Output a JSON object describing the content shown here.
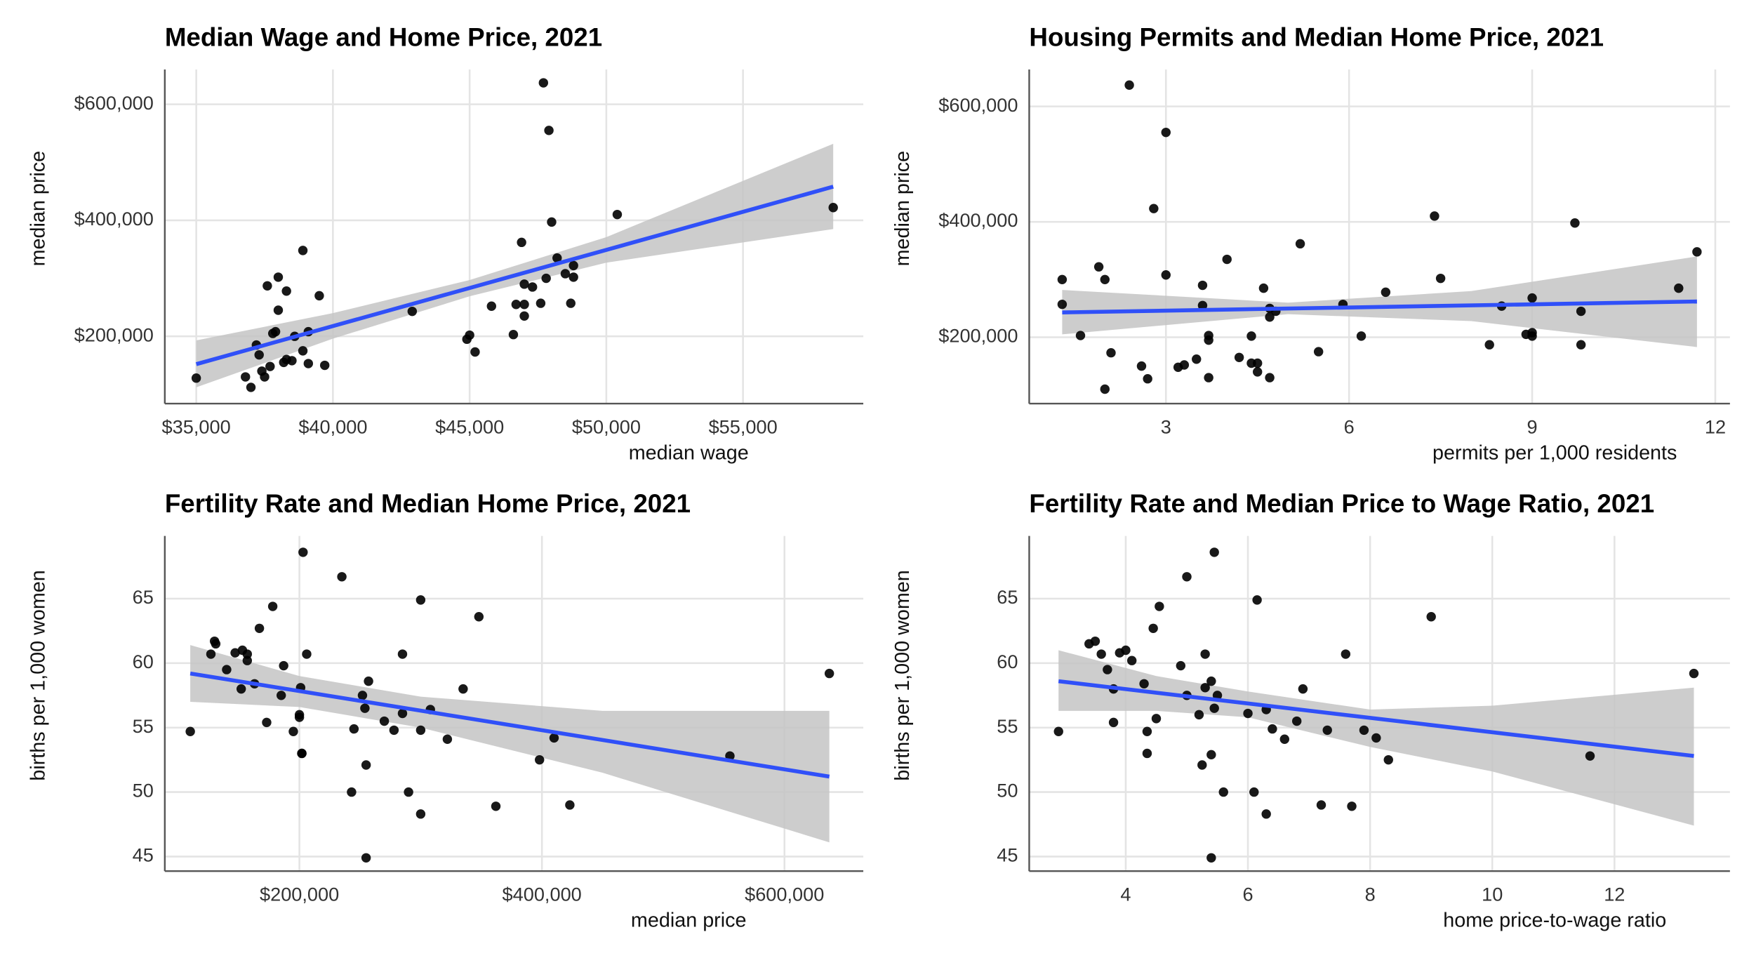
{
  "chart_data": [
    {
      "type": "scatter",
      "title": "Median Wage and Home Price, 2021",
      "x_label": "median wage",
      "y_label": "median price",
      "color": "#000000",
      "x": [
        35000,
        36800,
        37000,
        37200,
        37300,
        37400,
        37500,
        37600,
        37700,
        37800,
        37900,
        38000,
        38000,
        38200,
        38300,
        38300,
        38500,
        38600,
        38900,
        38900,
        39100,
        39100,
        39500,
        39700,
        42900,
        44900,
        45000,
        45200,
        45800,
        46600,
        46700,
        46900,
        47000,
        47000,
        47000,
        47300,
        47600,
        47700,
        47800,
        47900,
        48000,
        48200,
        48500,
        48700,
        48800,
        48800,
        50400,
        58300
      ],
      "values": [
        128000,
        130000,
        112000,
        185000,
        168000,
        140000,
        130000,
        287000,
        148000,
        205000,
        208000,
        302000,
        245000,
        155000,
        278000,
        160000,
        158000,
        200000,
        175000,
        348000,
        208000,
        153000,
        270000,
        150000,
        243000,
        195000,
        202000,
        173000,
        252000,
        203000,
        255000,
        362000,
        255000,
        235000,
        290000,
        285000,
        257000,
        637000,
        300000,
        555000,
        397000,
        335000,
        308000,
        257000,
        322000,
        302000,
        410000,
        422000
      ],
      "trend": {
        "color": "#3050f8",
        "x": [
          35000,
          58300
        ],
        "y": [
          152000,
          458000
        ]
      },
      "band": {
        "color": "#c4c4c4",
        "x": [
          35000,
          40000,
          45000,
          50000,
          58300
        ],
        "lower": [
          112000,
          196000,
          269000,
          327000,
          385000
        ],
        "upper": [
          193000,
          240000,
          297000,
          371000,
          532000
        ]
      },
      "xlim": [
        33850,
        59400
      ],
      "ylim": [
        84000,
        660000
      ],
      "xticks": [
        {
          "value": 35000,
          "label": "$35,000"
        },
        {
          "value": 40000,
          "label": "$40,000"
        },
        {
          "value": 45000,
          "label": "$45,000"
        },
        {
          "value": 50000,
          "label": "$50,000"
        },
        {
          "value": 55000,
          "label": "$55,000"
        }
      ],
      "yticks": [
        {
          "value": 200000,
          "label": "$200,000"
        },
        {
          "value": 400000,
          "label": "$400,000"
        },
        {
          "value": 600000,
          "label": "$600,000"
        }
      ],
      "grid": true
    },
    {
      "type": "scatter",
      "title": "Housing Permits and Median Home Price, 2021",
      "x_label": "permits per 1,000 residents",
      "y_label": "median price",
      "color": "#000000",
      "x": [
        1.3,
        1.3,
        1.6,
        1.9,
        2.0,
        2.0,
        2.1,
        2.4,
        2.6,
        2.7,
        2.8,
        3.0,
        3.0,
        3.3,
        3.2,
        3.5,
        3.6,
        3.6,
        3.7,
        3.7,
        3.7,
        4.0,
        4.2,
        4.4,
        4.4,
        4.5,
        4.5,
        4.6,
        4.7,
        4.7,
        4.8,
        4.7,
        5.2,
        5.5,
        5.9,
        6.2,
        6.6,
        7.4,
        7.5,
        8.3,
        8.5,
        8.9,
        9.0,
        9.0,
        9.0,
        9.7,
        9.8,
        9.8,
        11.4,
        11.7
      ],
      "values": [
        300000,
        257000,
        203000,
        322000,
        110000,
        300000,
        173000,
        637000,
        150000,
        128000,
        423000,
        308000,
        555000,
        152000,
        148000,
        162000,
        290000,
        255000,
        203000,
        195000,
        130000,
        335000,
        165000,
        155000,
        202000,
        155000,
        140000,
        285000,
        235000,
        250000,
        245000,
        130000,
        362000,
        175000,
        257000,
        202000,
        278000,
        410000,
        302000,
        187000,
        254000,
        205000,
        268000,
        208000,
        202000,
        398000,
        187000,
        245000,
        285000,
        348000
      ],
      "trend": {
        "color": "#3050f8",
        "x": [
          1.3,
          11.7
        ],
        "y": [
          243000,
          262000
        ]
      },
      "band": {
        "color": "#c4c4c4",
        "x": [
          1.3,
          5,
          8,
          11.7
        ],
        "lower": [
          205000,
          240000,
          228000,
          183000
        ],
        "upper": [
          282000,
          260000,
          280000,
          340000
        ]
      },
      "xlim": [
        0.76,
        12.24
      ],
      "ylim": [
        85000,
        664000
      ],
      "xticks": [
        3,
        6,
        9,
        12
      ],
      "yticks": [
        {
          "value": 200000,
          "label": "$200,000"
        },
        {
          "value": 400000,
          "label": "$400,000"
        },
        {
          "value": 600000,
          "label": "$600,000"
        }
      ],
      "grid": true
    },
    {
      "type": "scatter",
      "title": "Fertility Rate and Median Home Price, 2021",
      "x_label": "median price",
      "y_label": "births per 1,000 women",
      "color": "#000000",
      "x": [
        110000,
        127000,
        130000,
        131000,
        140000,
        147000,
        152000,
        153000,
        157000,
        157000,
        163000,
        167000,
        173000,
        178000,
        185000,
        187000,
        195000,
        200000,
        200000,
        201000,
        202000,
        202000,
        203000,
        206000,
        235000,
        243000,
        245000,
        252000,
        254000,
        255000,
        255000,
        257000,
        270000,
        278000,
        285000,
        285000,
        290000,
        300000,
        300000,
        300000,
        308000,
        322000,
        335000,
        348000,
        362000,
        398000,
        410000,
        423000,
        555000,
        637000
      ],
      "values": [
        54.7,
        60.7,
        61.7,
        61.5,
        59.5,
        60.8,
        58.0,
        61.0,
        60.2,
        60.7,
        58.4,
        62.7,
        55.4,
        64.4,
        57.5,
        59.8,
        54.7,
        56.0,
        55.8,
        58.1,
        53.0,
        53.0,
        68.6,
        60.7,
        66.7,
        50.0,
        54.9,
        57.5,
        56.5,
        44.9,
        52.1,
        58.6,
        55.5,
        54.8,
        56.1,
        60.7,
        50.0,
        48.3,
        54.8,
        64.9,
        56.4,
        54.1,
        58.0,
        63.6,
        48.9,
        52.5,
        54.2,
        49.0,
        52.8,
        59.2
      ],
      "trend": {
        "color": "#3050f8",
        "x": [
          110000,
          637000
        ],
        "y": [
          59.2,
          51.2
        ]
      },
      "band": {
        "color": "#c4c4c4",
        "x": [
          110000,
          200000,
          300000,
          450000,
          637000
        ],
        "lower": [
          57.0,
          56.6,
          55.0,
          51.5,
          46.1
        ],
        "upper": [
          61.4,
          59.0,
          57.4,
          56.3,
          56.3
        ]
      },
      "xlim": [
        89000,
        665000
      ],
      "ylim": [
        43.87,
        69.87
      ],
      "xticks": [
        {
          "value": 200000,
          "label": "$200,000"
        },
        {
          "value": 400000,
          "label": "$400,000"
        },
        {
          "value": 600000,
          "label": "$600,000"
        }
      ],
      "yticks": [
        45,
        50,
        55,
        60,
        65
      ],
      "grid": true
    },
    {
      "type": "scatter",
      "title": "Fertility Rate and Median Price to Wage Ratio, 2021",
      "x_label": "home price-to-wage ratio",
      "y_label": "births per 1,000 women",
      "color": "#000000",
      "x": [
        2.9,
        3.4,
        3.5,
        3.6,
        3.7,
        3.8,
        3.8,
        3.9,
        4.0,
        4.1,
        4.3,
        4.35,
        4.35,
        4.45,
        4.5,
        4.55,
        4.9,
        5.0,
        5.0,
        5.2,
        5.25,
        5.3,
        5.3,
        5.4,
        5.4,
        5.4,
        5.45,
        5.45,
        5.5,
        5.6,
        6.0,
        6.1,
        6.15,
        6.3,
        6.3,
        6.4,
        6.6,
        6.8,
        6.9,
        7.2,
        7.3,
        7.6,
        7.7,
        7.9,
        8.1,
        8.3,
        9.0,
        11.6,
        13.3
      ],
      "values": [
        54.7,
        61.5,
        61.7,
        60.7,
        59.5,
        58.0,
        55.4,
        60.8,
        61.0,
        60.2,
        58.4,
        54.7,
        53.0,
        62.7,
        55.7,
        64.4,
        59.8,
        57.5,
        66.7,
        56.0,
        52.1,
        58.1,
        60.7,
        52.9,
        58.6,
        44.9,
        68.6,
        56.5,
        57.5,
        50.0,
        56.1,
        50.0,
        64.9,
        48.3,
        56.4,
        54.9,
        54.1,
        55.5,
        58.0,
        49.0,
        54.8,
        60.7,
        48.9,
        54.8,
        54.2,
        52.5,
        63.6,
        52.8,
        59.2
      ],
      "trend": {
        "color": "#3050f8",
        "x": [
          2.9,
          13.3
        ],
        "y": [
          58.6,
          52.8
        ]
      },
      "band": {
        "color": "#c4c4c4",
        "x": [
          2.9,
          4.5,
          6,
          8,
          10,
          13.3
        ],
        "lower": [
          56.3,
          56.3,
          55.8,
          53.5,
          51.6,
          47.4
        ],
        "upper": [
          61.0,
          59.0,
          57.8,
          56.4,
          56.7,
          58.1
        ]
      },
      "xlim": [
        2.42,
        13.89
      ],
      "ylim": [
        43.87,
        69.87
      ],
      "xticks": [
        4,
        6,
        8,
        10,
        12
      ],
      "yticks": [
        45,
        50,
        55,
        60,
        65
      ],
      "grid": true
    }
  ]
}
